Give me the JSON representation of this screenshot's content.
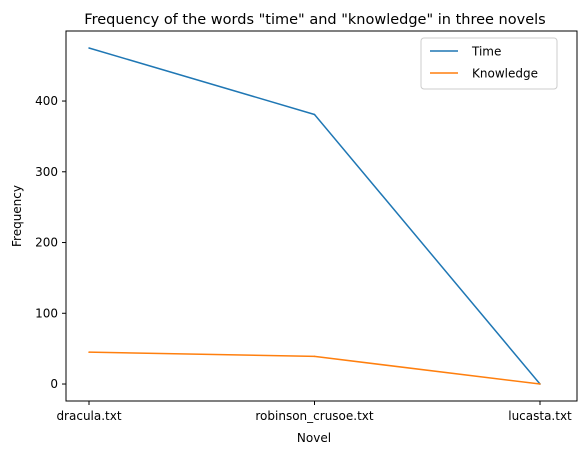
{
  "chart_data": {
    "type": "line",
    "title": "Frequency of the words \"time\" and \"knowledge\" in three novels",
    "xlabel": "Novel",
    "ylabel": "Frequency",
    "categories": [
      "dracula.txt",
      "robinson_crusoe.txt",
      "lucasta.txt"
    ],
    "series": [
      {
        "name": "Time",
        "values": [
          475,
          381,
          0
        ],
        "color": "#1f77b4"
      },
      {
        "name": "Knowledge",
        "values": [
          45,
          39,
          0
        ],
        "color": "#ff7f0e"
      }
    ],
    "yticks": [
      0,
      100,
      200,
      300,
      400
    ],
    "ylim": [
      -24,
      499
    ],
    "grid": false,
    "legend_position": "top-right"
  }
}
